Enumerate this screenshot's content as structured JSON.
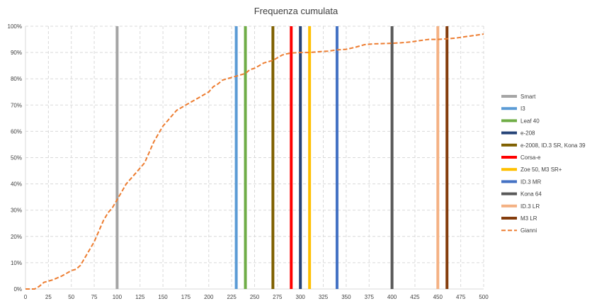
{
  "chart_data": {
    "type": "line",
    "title": "Frequenza cumulata",
    "xlabel": "",
    "ylabel": "",
    "xlim": [
      0,
      500
    ],
    "ylim": [
      0,
      100
    ],
    "x_ticks": [
      "0",
      "25",
      "50",
      "75",
      "100",
      "125",
      "150",
      "175",
      "200",
      "225",
      "250",
      "275",
      "300",
      "325",
      "350",
      "375",
      "400",
      "425",
      "450",
      "475",
      "500"
    ],
    "y_ticks": [
      "0%",
      "10%",
      "20%",
      "30%",
      "40%",
      "50%",
      "60%",
      "70%",
      "80%",
      "90%",
      "100%"
    ],
    "grid": "dashed",
    "legend_position": "right",
    "vertical_lines": [
      {
        "name": "Smart",
        "x": 100,
        "color": "#a5a5a5"
      },
      {
        "name": "I3",
        "x": 230,
        "color": "#5b9bd5"
      },
      {
        "name": "Leaf 40",
        "x": 240,
        "color": "#70ad47"
      },
      {
        "name": "e-208",
        "x": 300,
        "color": "#264478"
      },
      {
        "name": "e-2008, ID.3 SR, Kona 39",
        "x": 270,
        "color": "#7f6000"
      },
      {
        "name": "Corsa-e",
        "x": 290,
        "color": "#ff0000"
      },
      {
        "name": "Zoe 50, M3 SR+",
        "x": 310,
        "color": "#ffc000"
      },
      {
        "name": "ID.3 MR",
        "x": 340,
        "color": "#4472c4"
      },
      {
        "name": "Kona 64",
        "x": 400,
        "color": "#595959"
      },
      {
        "name": "ID.3 LR",
        "x": 450,
        "color": "#f4b183"
      },
      {
        "name": "M3 LR",
        "x": 460,
        "color": "#843c0c"
      }
    ],
    "series": [
      {
        "name": "Gianni",
        "color": "#ed7d31",
        "style": "dashed",
        "x": [
          0,
          10,
          15,
          20,
          30,
          40,
          50,
          55,
          60,
          65,
          70,
          75,
          80,
          85,
          90,
          95,
          100,
          105,
          110,
          115,
          120,
          125,
          130,
          135,
          140,
          145,
          150,
          155,
          160,
          165,
          170,
          175,
          180,
          185,
          190,
          195,
          200,
          205,
          210,
          215,
          220,
          225,
          230,
          235,
          240,
          245,
          250,
          255,
          260,
          265,
          270,
          275,
          280,
          285,
          290,
          300,
          310,
          320,
          330,
          340,
          350,
          360,
          370,
          380,
          390,
          400,
          410,
          420,
          430,
          440,
          450,
          460,
          470,
          480,
          490,
          500
        ],
        "y": [
          0,
          0,
          1,
          2.5,
          3.5,
          5,
          7,
          7.5,
          9,
          12,
          15,
          18,
          22,
          26,
          29,
          31,
          34,
          37,
          40,
          42,
          44,
          46,
          48,
          52,
          56,
          59,
          62,
          64,
          66,
          68,
          69,
          70,
          71,
          72,
          73,
          74,
          75,
          77,
          78,
          79.5,
          80,
          80.5,
          81,
          81.5,
          82,
          83.5,
          84,
          85,
          86,
          86.5,
          87,
          88,
          89,
          89.5,
          89.8,
          90,
          90,
          90.3,
          90.5,
          91,
          91.2,
          92,
          93,
          93.3,
          93.4,
          93.5,
          93.7,
          94,
          94.5,
          95,
          95,
          95.2,
          95.5,
          96,
          96.5,
          97
        ]
      }
    ]
  }
}
